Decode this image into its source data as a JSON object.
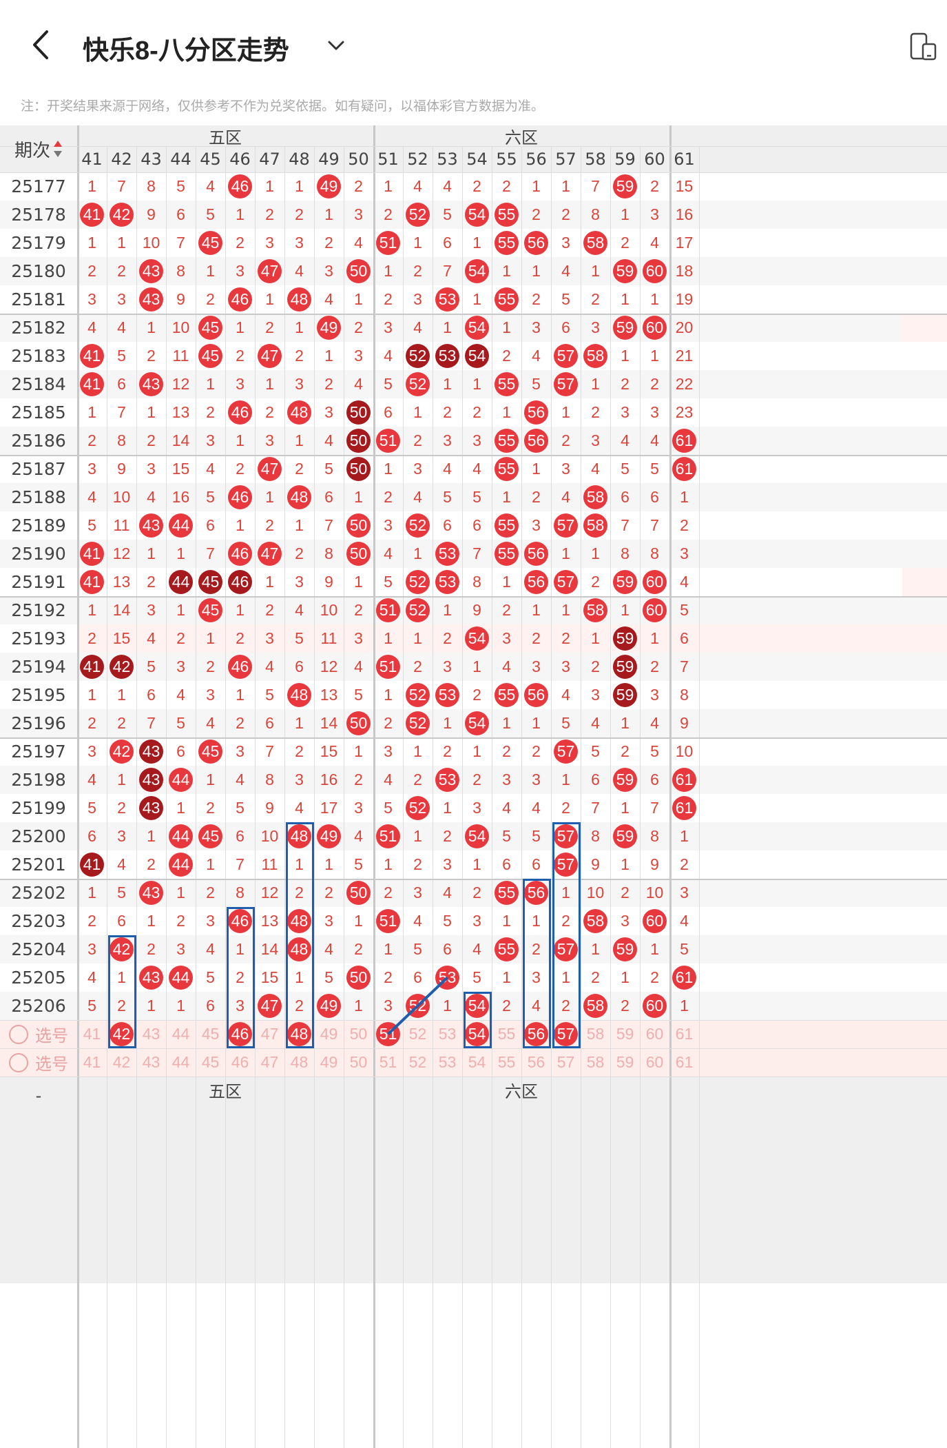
{
  "header": {
    "title": "快乐8-八分区走势",
    "notice": "注：开奖结果来源于网络，仅供参考不作为兑奖依据。如有疑问，以福体彩官方数据为准。"
  },
  "table": {
    "period_header": "期次",
    "zone_labels": [
      "五区",
      "六区"
    ],
    "columns": [
      41,
      42,
      43,
      44,
      45,
      46,
      47,
      48,
      49,
      50,
      51,
      52,
      53,
      54,
      55,
      56,
      57,
      58,
      59,
      60,
      61
    ],
    "rows": [
      {
        "p": "25177",
        "c": [
          1,
          7,
          8,
          5,
          4,
          "*46",
          1,
          1,
          "*49",
          2,
          1,
          4,
          4,
          2,
          2,
          1,
          1,
          7,
          "*59",
          2,
          15
        ]
      },
      {
        "p": "25178",
        "c": [
          "*41",
          "*42",
          9,
          6,
          5,
          1,
          2,
          2,
          1,
          3,
          2,
          "*52",
          5,
          "*54",
          "*55",
          2,
          2,
          8,
          1,
          3,
          16
        ]
      },
      {
        "p": "25179",
        "c": [
          1,
          1,
          10,
          7,
          "*45",
          2,
          3,
          3,
          2,
          4,
          "*51",
          1,
          6,
          1,
          "*55",
          "*56",
          3,
          "*58",
          2,
          4,
          17
        ]
      },
      {
        "p": "25180",
        "c": [
          2,
          2,
          "*43",
          8,
          1,
          3,
          "*47",
          4,
          3,
          "*50",
          1,
          2,
          7,
          "*54",
          1,
          1,
          4,
          1,
          "*59",
          "*60",
          18
        ]
      },
      {
        "p": "25181",
        "c": [
          3,
          3,
          "*43",
          9,
          2,
          "*46",
          1,
          "*48",
          4,
          1,
          2,
          3,
          "*53",
          1,
          "*55",
          2,
          5,
          2,
          1,
          1,
          19
        ]
      },
      {
        "p": "25182",
        "c": [
          4,
          4,
          1,
          10,
          "*45",
          1,
          2,
          1,
          "*49",
          2,
          3,
          4,
          1,
          "*54",
          1,
          3,
          6,
          3,
          "*59",
          "*60",
          20
        ]
      },
      {
        "p": "25183",
        "c": [
          "*41",
          5,
          2,
          11,
          "*45",
          2,
          "*47",
          2,
          1,
          3,
          4,
          "#52",
          "#53",
          "#54",
          2,
          4,
          "*57",
          "*58",
          1,
          1,
          21
        ]
      },
      {
        "p": "25184",
        "c": [
          "*41",
          6,
          "*43",
          12,
          1,
          3,
          1,
          3,
          2,
          4,
          5,
          "*52",
          1,
          1,
          "*55",
          5,
          "*57",
          1,
          2,
          2,
          22
        ]
      },
      {
        "p": "25185",
        "c": [
          1,
          7,
          1,
          13,
          2,
          "*46",
          2,
          "*48",
          3,
          "#50",
          6,
          1,
          2,
          2,
          1,
          "*56",
          1,
          2,
          3,
          3,
          23
        ]
      },
      {
        "p": "25186",
        "c": [
          2,
          8,
          2,
          14,
          3,
          1,
          3,
          1,
          4,
          "#50",
          "*51",
          2,
          3,
          3,
          "*55",
          "*56",
          2,
          3,
          4,
          4,
          "*61"
        ]
      },
      {
        "p": "25187",
        "c": [
          3,
          9,
          3,
          15,
          4,
          2,
          "*47",
          2,
          5,
          "#50",
          1,
          3,
          4,
          4,
          "*55",
          1,
          3,
          4,
          5,
          5,
          "*61"
        ]
      },
      {
        "p": "25188",
        "c": [
          4,
          10,
          4,
          16,
          5,
          "*46",
          1,
          "*48",
          6,
          1,
          2,
          4,
          5,
          5,
          1,
          2,
          4,
          "*58",
          6,
          6,
          1
        ]
      },
      {
        "p": "25189",
        "c": [
          5,
          11,
          "*43",
          "*44",
          6,
          1,
          2,
          1,
          7,
          "*50",
          3,
          "*52",
          6,
          6,
          "*55",
          3,
          "*57",
          "*58",
          7,
          7,
          2
        ]
      },
      {
        "p": "25190",
        "c": [
          "*41",
          12,
          1,
          1,
          7,
          "*46",
          "*47",
          2,
          8,
          "*50",
          4,
          1,
          "*53",
          7,
          "*55",
          "*56",
          1,
          1,
          8,
          8,
          3
        ]
      },
      {
        "p": "25191",
        "c": [
          "*41",
          13,
          2,
          "#44",
          "#45",
          "#46",
          1,
          3,
          9,
          1,
          5,
          "*52",
          "*53",
          8,
          1,
          "*56",
          "*57",
          2,
          "*59",
          "*60",
          4
        ]
      },
      {
        "p": "25192",
        "c": [
          1,
          14,
          3,
          1,
          "*45",
          1,
          2,
          4,
          10,
          2,
          "*51",
          "*52",
          1,
          9,
          2,
          1,
          1,
          "*58",
          1,
          "*60",
          5
        ]
      },
      {
        "p": "25193",
        "c": [
          2,
          15,
          4,
          2,
          1,
          2,
          3,
          5,
          11,
          3,
          1,
          1,
          2,
          "*54",
          3,
          2,
          2,
          1,
          "#59",
          1,
          6
        ]
      },
      {
        "p": "25194",
        "c": [
          "#41",
          "#42",
          5,
          3,
          2,
          "*46",
          4,
          6,
          12,
          4,
          "*51",
          2,
          3,
          1,
          4,
          3,
          3,
          2,
          "#59",
          2,
          7
        ]
      },
      {
        "p": "25195",
        "c": [
          1,
          1,
          6,
          4,
          3,
          1,
          5,
          "*48",
          13,
          5,
          1,
          "*52",
          "*53",
          2,
          "*55",
          "*56",
          4,
          3,
          "#59",
          3,
          8
        ]
      },
      {
        "p": "25196",
        "c": [
          2,
          2,
          7,
          5,
          4,
          2,
          6,
          1,
          14,
          "*50",
          2,
          "*52",
          1,
          "*54",
          1,
          1,
          5,
          4,
          1,
          4,
          9
        ]
      },
      {
        "p": "25197",
        "c": [
          3,
          "*42",
          "#43",
          6,
          "*45",
          3,
          7,
          2,
          15,
          1,
          3,
          1,
          2,
          1,
          2,
          2,
          "*57",
          5,
          2,
          5,
          10
        ]
      },
      {
        "p": "25198",
        "c": [
          4,
          1,
          "#43",
          "*44",
          1,
          4,
          8,
          3,
          16,
          2,
          4,
          2,
          "*53",
          2,
          3,
          3,
          1,
          6,
          "*59",
          6,
          "*61"
        ]
      },
      {
        "p": "25199",
        "c": [
          5,
          2,
          "#43",
          1,
          2,
          5,
          9,
          4,
          17,
          3,
          5,
          "*52",
          1,
          3,
          4,
          4,
          2,
          7,
          1,
          7,
          "*61"
        ]
      },
      {
        "p": "25200",
        "c": [
          6,
          3,
          1,
          "*44",
          "*45",
          6,
          10,
          "*48",
          "*49",
          4,
          "*51",
          1,
          2,
          "*54",
          5,
          5,
          "*57",
          8,
          "*59",
          8,
          1
        ]
      },
      {
        "p": "25201",
        "c": [
          "#41",
          4,
          2,
          "*44",
          1,
          7,
          11,
          1,
          1,
          5,
          1,
          2,
          3,
          1,
          6,
          6,
          "*57",
          9,
          1,
          9,
          2
        ]
      },
      {
        "p": "25202",
        "c": [
          1,
          5,
          "*43",
          1,
          2,
          8,
          12,
          2,
          2,
          "*50",
          2,
          3,
          4,
          2,
          "*55",
          "*56",
          1,
          10,
          2,
          10,
          3
        ]
      },
      {
        "p": "25203",
        "c": [
          2,
          6,
          1,
          2,
          3,
          "*46",
          13,
          "*48",
          3,
          1,
          "*51",
          4,
          5,
          3,
          1,
          1,
          2,
          "*58",
          3,
          "*60",
          4
        ]
      },
      {
        "p": "25204",
        "c": [
          3,
          "*42",
          2,
          3,
          4,
          1,
          14,
          "*48",
          4,
          2,
          1,
          5,
          6,
          4,
          "*55",
          2,
          "*57",
          1,
          "*59",
          1,
          5
        ]
      },
      {
        "p": "25205",
        "c": [
          4,
          1,
          "*43",
          "*44",
          5,
          2,
          15,
          1,
          5,
          "*50",
          2,
          6,
          "*53",
          5,
          1,
          3,
          1,
          2,
          1,
          2,
          "*61"
        ]
      },
      {
        "p": "25206",
        "c": [
          5,
          2,
          1,
          1,
          6,
          3,
          "*47",
          2,
          "*49",
          1,
          3,
          "*52",
          1,
          "*54",
          2,
          4,
          2,
          "*58",
          2,
          "*60",
          1
        ]
      }
    ],
    "select_rows": [
      {
        "label": "选号",
        "selected": [
          42,
          46,
          48,
          51,
          54,
          56,
          57
        ]
      },
      {
        "label": "选号",
        "selected": []
      }
    ],
    "footer_dash": "-"
  },
  "colors": {
    "ball": "#E8383D",
    "ball_dark": "#A61A1E",
    "miss_text": "#D9453B",
    "period_text": "#444",
    "grid": "#DDDDDD",
    "zone_bg": "#EFEFEF",
    "select_bg": "#FDEDEB",
    "box": "#1F5DAD"
  },
  "annotations": {
    "boxes": [
      {
        "col": 42,
        "from": "25204",
        "to": "sel1"
      },
      {
        "col": 46,
        "from": "25203",
        "to": "sel1"
      },
      {
        "col": 48,
        "from": "25200",
        "to": "sel1"
      },
      {
        "col": 54,
        "from": "25206",
        "to": "sel1"
      },
      {
        "col": 56,
        "from": "25202",
        "to": "sel1"
      },
      {
        "col": 57,
        "from": "25200",
        "to": "sel1"
      }
    ],
    "line": {
      "from": {
        "col": 53,
        "row": "25205"
      },
      "to": {
        "col": 51,
        "row": "sel1"
      }
    }
  }
}
